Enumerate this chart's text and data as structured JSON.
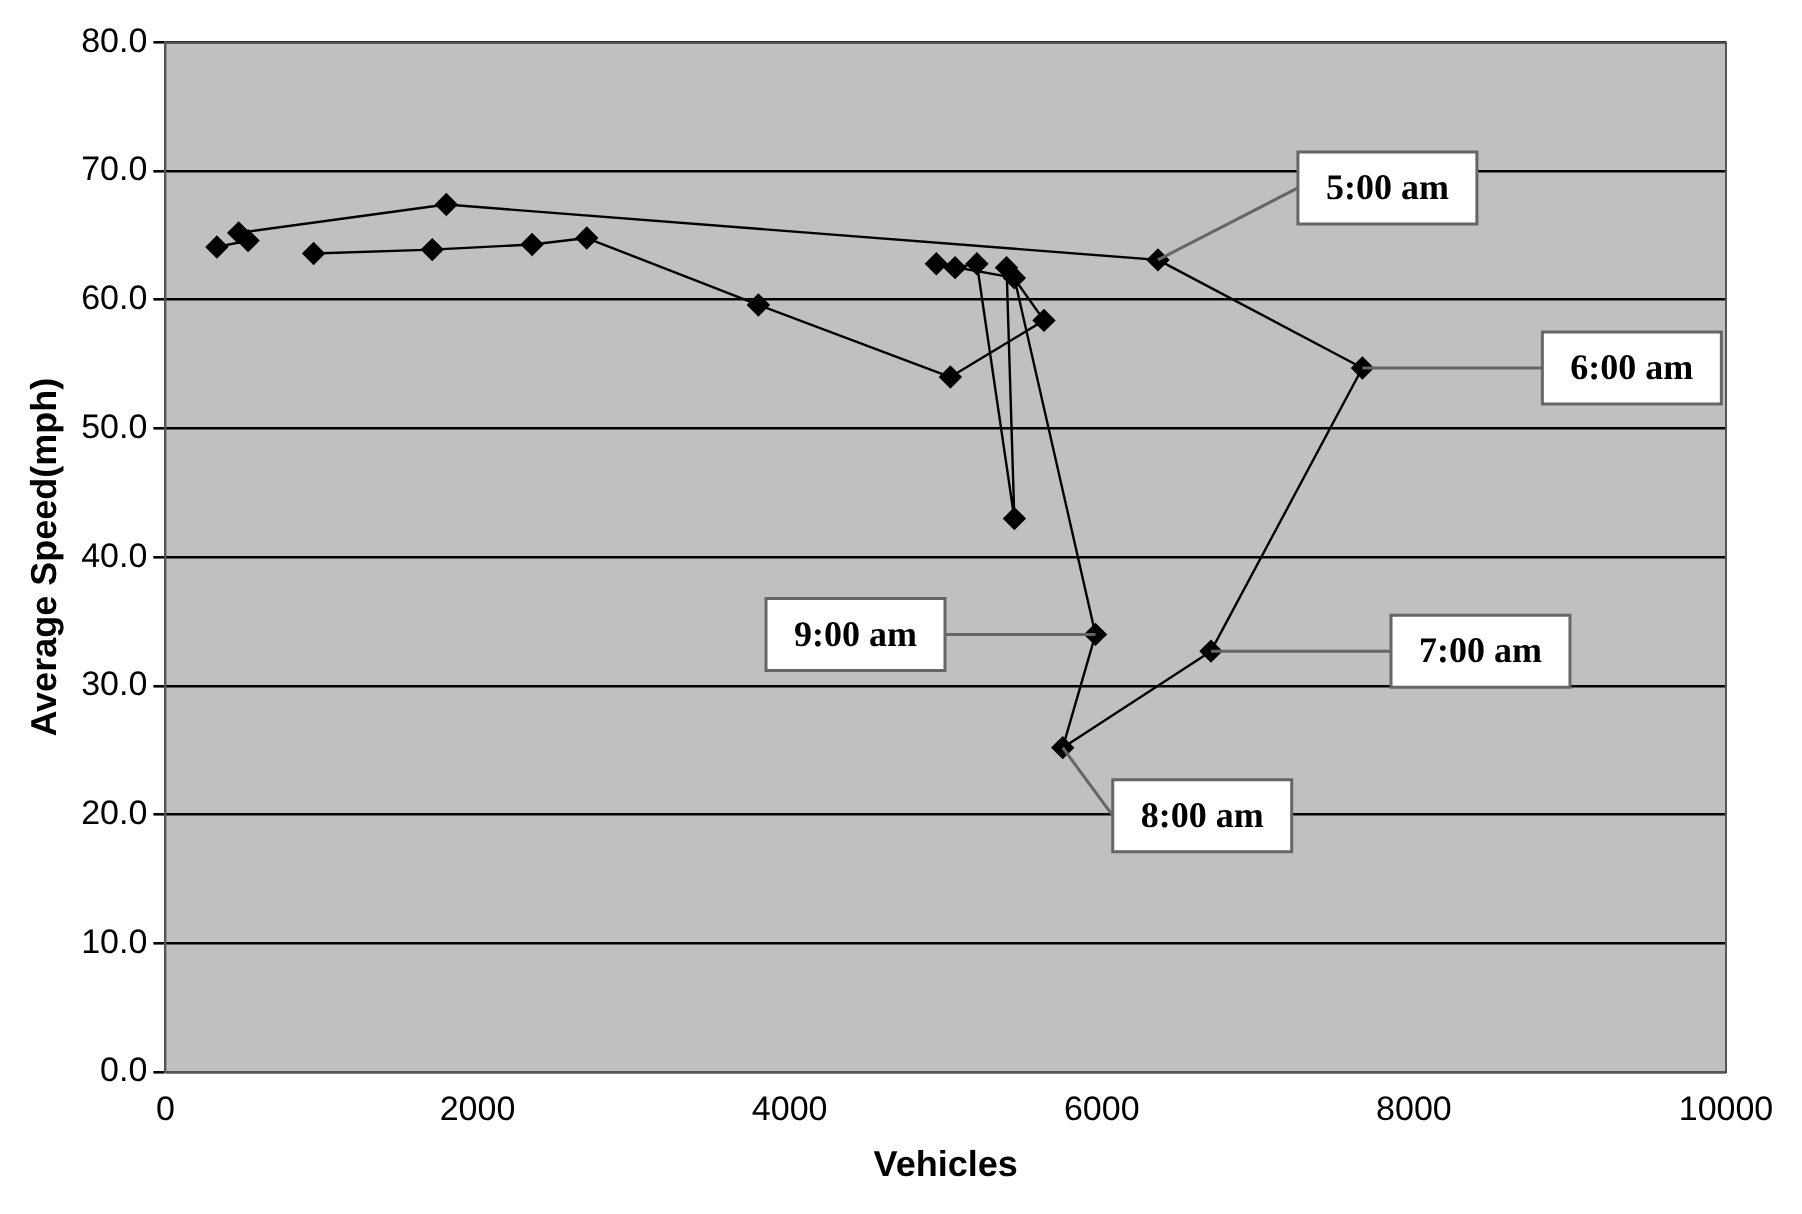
{
  "chart_data": {
    "type": "line",
    "xlabel": "Vehicles",
    "ylabel": "Average Speed(mph)",
    "x": [
      330,
      530,
      470,
      1800,
      6360,
      7670,
      6700,
      5750,
      5960,
      5440,
      4940,
      5060,
      5200,
      5440,
      5390,
      5630,
      5030,
      3800,
      2700,
      2350,
      1710,
      950
    ],
    "series": [
      {
        "color": "#000000",
        "values": [
          64.1,
          64.6,
          65.2,
          67.4,
          63.1,
          54.7,
          32.7,
          25.2,
          34.0,
          61.7,
          62.8,
          62.5,
          62.8,
          43.0,
          62.5,
          58.4,
          54.0,
          59.6,
          64.8,
          64.3,
          63.9,
          63.6
        ]
      }
    ],
    "xlim": [
      0,
      10000
    ],
    "xticks": [
      0,
      2000,
      4000,
      6000,
      8000,
      10000
    ],
    "ylim": [
      0,
      80
    ],
    "yticks": [
      {
        "value": 0,
        "label": "0.0"
      },
      {
        "value": 10,
        "label": "10.0"
      },
      {
        "value": 20,
        "label": "20.0"
      },
      {
        "value": 30,
        "label": "30.0"
      },
      {
        "value": 40,
        "label": "40.0"
      },
      {
        "value": 50,
        "label": "50.0"
      },
      {
        "value": 60,
        "label": "60.0"
      },
      {
        "value": 70,
        "label": "70.0"
      },
      {
        "value": 80,
        "label": "80.0"
      }
    ],
    "grid": "y",
    "legend": false,
    "marker": "diamond",
    "line_style": "solid",
    "annotations": [
      {
        "text": "5:00 am",
        "x": 6360,
        "y": 63.1
      },
      {
        "text": "6:00 am",
        "x": 7670,
        "y": 54.7
      },
      {
        "text": "7:00 am",
        "x": 6700,
        "y": 32.7
      },
      {
        "text": "8:00 am",
        "x": 5750,
        "y": 25.2
      },
      {
        "text": "9:00 am",
        "x": 5960,
        "y": 34.0
      }
    ]
  }
}
